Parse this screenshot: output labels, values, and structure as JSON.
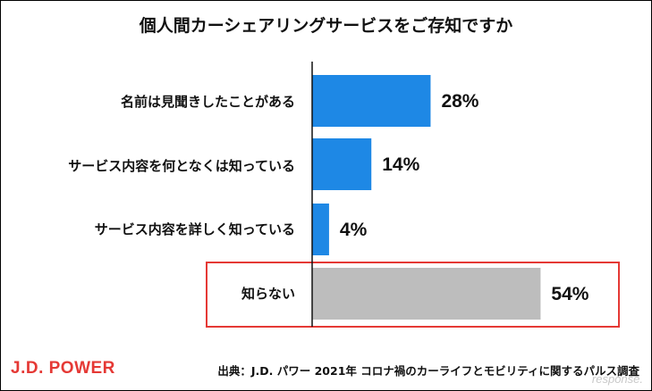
{
  "title": "個人間カーシェアリングサービスをご存知ですか",
  "chart_data": {
    "type": "bar",
    "orientation": "horizontal",
    "categories": [
      "名前は見聞きしたことがある",
      "サービス内容を何となくは知っている",
      "サービス内容を詳しく知っている",
      "知らない"
    ],
    "values": [
      28,
      14,
      4,
      54
    ],
    "value_labels": [
      "28%",
      "14%",
      "4%",
      "54%"
    ],
    "unit": "%",
    "xlim": [
      0,
      100
    ],
    "bar_colors": [
      "#1e88e5",
      "#1e88e5",
      "#1e88e5",
      "#bdbdbd"
    ],
    "highlighted_category": "知らない",
    "highlight_color": "#e53935",
    "grid": false,
    "legend": "none"
  },
  "source": "出典：J.D. パワー 2021年 コロナ禍のカーライフとモビリティに関するパルス調査",
  "logo_text": "J.D. POWER",
  "watermark": "response."
}
